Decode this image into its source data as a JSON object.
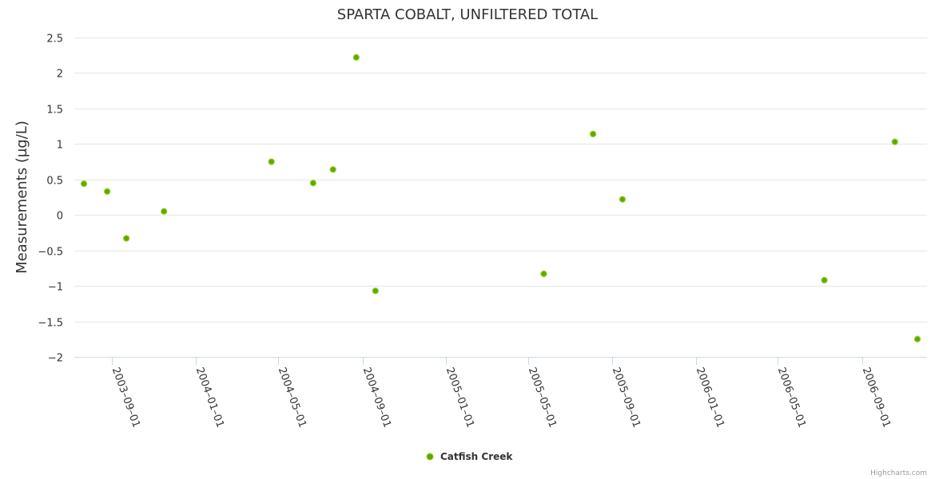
{
  "chart_data": {
    "type": "scatter",
    "title": "SPARTA COBALT, UNFILTERED TOTAL",
    "xlabel": "",
    "ylabel": "Measurements (µg/L)",
    "ylim": [
      -2,
      2.5
    ],
    "xlim": [
      "2003-07-08",
      "2006-12-05"
    ],
    "yticks": [
      2.5,
      2,
      1.5,
      1,
      0.5,
      0,
      -0.5,
      -1,
      -1.5,
      -2
    ],
    "ytick_labels": [
      "2.5",
      "2",
      "1.5",
      "1",
      "0.5",
      "0",
      "−0.5",
      "−1",
      "−1.5",
      "−2"
    ],
    "xticks": [
      "2003-09-01",
      "2004-01-01",
      "2004-05-01",
      "2004-09-01",
      "2005-01-01",
      "2005-05-01",
      "2005-09-01",
      "2006-01-01",
      "2006-05-01",
      "2006-09-01"
    ],
    "xtick_labels": [
      "2003–09–01",
      "2004–01–01",
      "2004–05–01",
      "2004–09–01",
      "2005–01–01",
      "2005–05–01",
      "2005–09–01",
      "2006–01–01",
      "2006–05–01",
      "2006–09–01"
    ],
    "grid": true,
    "legend_position": "bottom-center",
    "series": [
      {
        "name": "Catfish Creek",
        "color": "#5fa800",
        "points": [
          {
            "x": "2003-07-22",
            "y": 0.44
          },
          {
            "x": "2003-08-25",
            "y": 0.33
          },
          {
            "x": "2003-09-22",
            "y": -0.33
          },
          {
            "x": "2003-11-16",
            "y": 0.05
          },
          {
            "x": "2004-04-21",
            "y": 0.75
          },
          {
            "x": "2004-06-21",
            "y": 0.45
          },
          {
            "x": "2004-07-20",
            "y": 0.64
          },
          {
            "x": "2004-08-23",
            "y": 2.22
          },
          {
            "x": "2004-09-20",
            "y": -1.07
          },
          {
            "x": "2005-05-24",
            "y": -0.83
          },
          {
            "x": "2005-08-04",
            "y": 1.14
          },
          {
            "x": "2005-09-16",
            "y": 0.22
          },
          {
            "x": "2006-07-08",
            "y": -0.92
          },
          {
            "x": "2006-10-19",
            "y": 1.03
          },
          {
            "x": "2006-11-21",
            "y": -1.75
          }
        ]
      }
    ]
  },
  "credit": "Highcharts.com"
}
